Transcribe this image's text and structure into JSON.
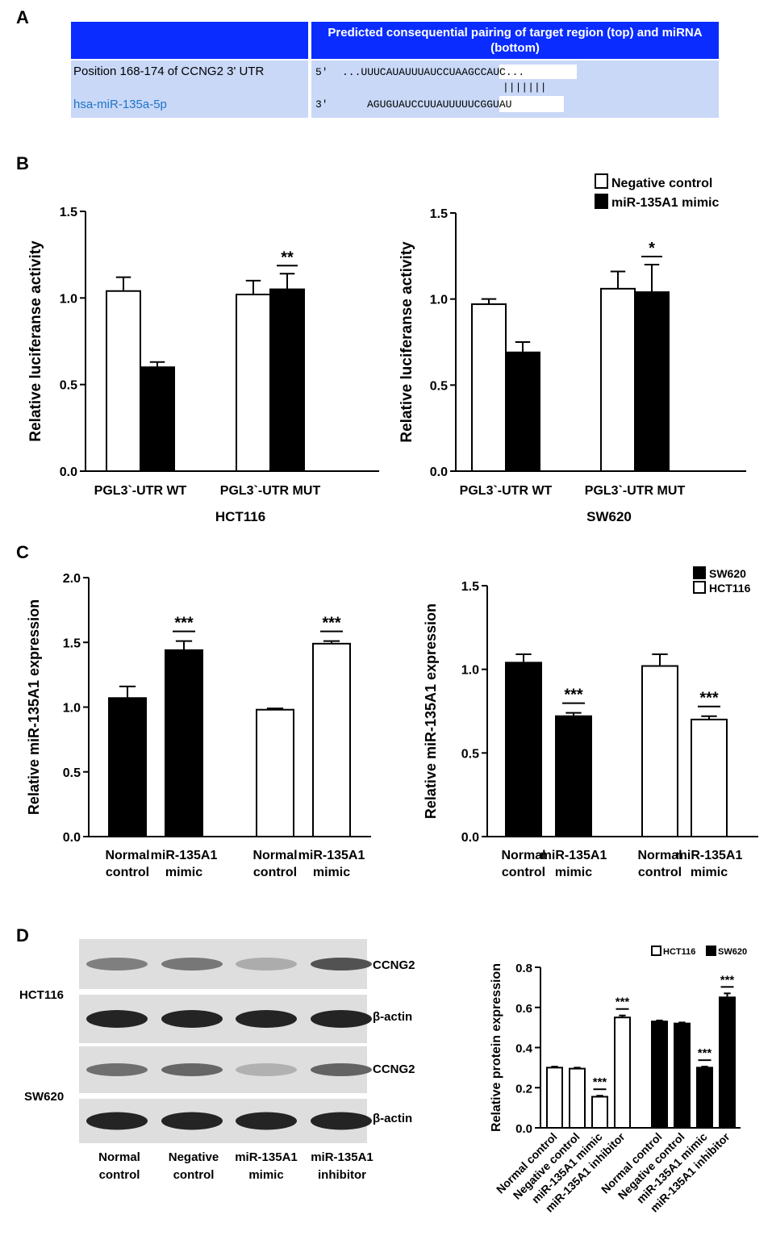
{
  "panels": {
    "a": "A",
    "b": "B",
    "c": "C",
    "d": "D"
  },
  "table": {
    "header": "Predicted consequential pairing of target region (top) and miRNA (bottom)",
    "row1_label": "Position 168-174 of CCNG2 3' UTR",
    "row2_label": "hsa-miR-135a-5p",
    "seq_top_prefix": "5'",
    "seq_top": "...UUUCAUAUUUAUCCUAAGCCAUC...",
    "pairing": "|||||||",
    "seq_bottom_prefix": "3'",
    "seq_bottom": "AGUGUAUCCUUAUUUUUCGGUAU",
    "colors": {
      "header": "#0a2cff",
      "body": "#c9d8f7",
      "link": "#1e73c8"
    }
  },
  "chart_data": [
    {
      "id": "B-HCT116",
      "type": "bar",
      "title": "HCT116",
      "ylabel": "Relative luciferanse activity",
      "ylim": [
        0,
        1.5
      ],
      "yticks": [
        "0.0",
        "0.5",
        "1.0",
        "1.5"
      ],
      "categories": [
        "PGL3`-UTR WT",
        "PGL3`-UTR MUT"
      ],
      "series": [
        {
          "name": "Negative control",
          "fill": "#ffffff",
          "values": [
            1.04,
            1.02
          ],
          "errors": [
            0.08,
            0.08
          ]
        },
        {
          "name": "miR-135A1 mimic",
          "fill": "#000000",
          "values": [
            0.6,
            1.05
          ],
          "errors": [
            0.03,
            0.09
          ]
        }
      ],
      "annotations": [
        {
          "text": "**",
          "group": 1
        }
      ]
    },
    {
      "id": "B-SW620",
      "type": "bar",
      "title": "SW620",
      "ylabel": "Relative luciferanse activity",
      "ylim": [
        0,
        1.5
      ],
      "yticks": [
        "0.0",
        "0.5",
        "1.0",
        "1.5"
      ],
      "categories": [
        "PGL3`-UTR WT",
        "PGL3`-UTR MUT"
      ],
      "series": [
        {
          "name": "Negative control",
          "fill": "#ffffff",
          "values": [
            0.97,
            1.06
          ],
          "errors": [
            0.03,
            0.1
          ]
        },
        {
          "name": "miR-135A1 mimic",
          "fill": "#000000",
          "values": [
            0.69,
            1.04
          ],
          "errors": [
            0.06,
            0.16
          ]
        }
      ],
      "annotations": [
        {
          "text": "*",
          "group": 1
        }
      ],
      "legend": {
        "placement": "top-right",
        "entries": [
          "Negative control",
          "miR-135A1 mimic"
        ]
      }
    },
    {
      "id": "C-left",
      "type": "bar",
      "ylabel": "Relative miR-135A1 expression",
      "ylim": [
        0,
        2.0
      ],
      "yticks": [
        "0.0",
        "0.5",
        "1.0",
        "1.5",
        "2.0"
      ],
      "bars": [
        {
          "label": [
            "Normal",
            "control"
          ],
          "value": 1.07,
          "error": 0.09,
          "fill": "#000000"
        },
        {
          "label": [
            "miR-135A1",
            "mimic"
          ],
          "value": 1.44,
          "error": 0.07,
          "fill": "#000000",
          "annotation": "***"
        },
        {
          "label": [
            "Normal",
            "control"
          ],
          "value": 0.98,
          "error": 0.01,
          "fill": "#ffffff"
        },
        {
          "label": [
            "miR-135A1",
            "mimic"
          ],
          "value": 1.49,
          "error": 0.02,
          "fill": "#ffffff",
          "annotation": "***"
        }
      ]
    },
    {
      "id": "C-right",
      "type": "bar",
      "ylabel": "Relative miR-135A1 expression",
      "ylim": [
        0,
        1.5
      ],
      "yticks": [
        "0.0",
        "0.5",
        "1.0",
        "1.5"
      ],
      "bars": [
        {
          "label": [
            "Normal",
            "control"
          ],
          "value": 1.04,
          "error": 0.05,
          "fill": "#000000"
        },
        {
          "label": [
            "miR-135A1",
            "mimic"
          ],
          "value": 0.72,
          "error": 0.02,
          "fill": "#000000",
          "annotation": "***"
        },
        {
          "label": [
            "Normal",
            "control"
          ],
          "value": 1.02,
          "error": 0.07,
          "fill": "#ffffff"
        },
        {
          "label": [
            "miR-135A1",
            "mimic"
          ],
          "value": 0.7,
          "error": 0.02,
          "fill": "#ffffff",
          "annotation": "***"
        }
      ],
      "legend": {
        "placement": "top-right",
        "entries": [
          {
            "name": "SW620",
            "fill": "#000000"
          },
          {
            "name": "HCT116",
            "fill": "#ffffff"
          }
        ]
      }
    },
    {
      "id": "D-right",
      "type": "bar",
      "ylabel": "Relative protein expression",
      "ylim": [
        0,
        0.8
      ],
      "yticks": [
        "0.0",
        "0.2",
        "0.4",
        "0.6",
        "0.8"
      ],
      "bars": [
        {
          "label": "Normal control",
          "value": 0.3,
          "error": 0.005,
          "fill": "#ffffff"
        },
        {
          "label": "Negative control",
          "value": 0.295,
          "error": 0.005,
          "fill": "#ffffff"
        },
        {
          "label": "miR-135A1 mimic",
          "value": 0.155,
          "error": 0.005,
          "fill": "#ffffff",
          "annotation": "***"
        },
        {
          "label": "miR-135A1 inhibitor",
          "value": 0.55,
          "error": 0.01,
          "fill": "#ffffff",
          "annotation": "***"
        },
        {
          "label": "Normal control",
          "value": 0.53,
          "error": 0.005,
          "fill": "#000000"
        },
        {
          "label": "Negative control",
          "value": 0.52,
          "error": 0.005,
          "fill": "#000000"
        },
        {
          "label": "miR-135A1 mimic",
          "value": 0.3,
          "error": 0.005,
          "fill": "#000000",
          "annotation": "***"
        },
        {
          "label": "miR-135A1 inhibitor",
          "value": 0.65,
          "error": 0.02,
          "fill": "#000000",
          "annotation": "***"
        }
      ],
      "legend": {
        "placement": "top-right",
        "entries": [
          {
            "name": "HCT116",
            "fill": "#ffffff"
          },
          {
            "name": "SW620",
            "fill": "#000000"
          }
        ]
      }
    }
  ],
  "blot": {
    "cell_lines": [
      "HCT116",
      "SW620"
    ],
    "band_labels": [
      "CCNG2",
      "β-actin",
      "CCNG2",
      "β-actin"
    ],
    "lanes": [
      [
        "Normal",
        "control"
      ],
      [
        "Negative",
        "control"
      ],
      [
        "miR-135A1",
        "mimic"
      ],
      [
        "miR-135A1",
        "inhibitor"
      ]
    ],
    "intensities": [
      [
        0.45,
        0.5,
        0.18,
        0.72
      ],
      [
        1,
        1,
        1,
        1
      ],
      [
        0.55,
        0.6,
        0.15,
        0.62
      ],
      [
        1,
        1,
        1,
        1
      ]
    ]
  }
}
